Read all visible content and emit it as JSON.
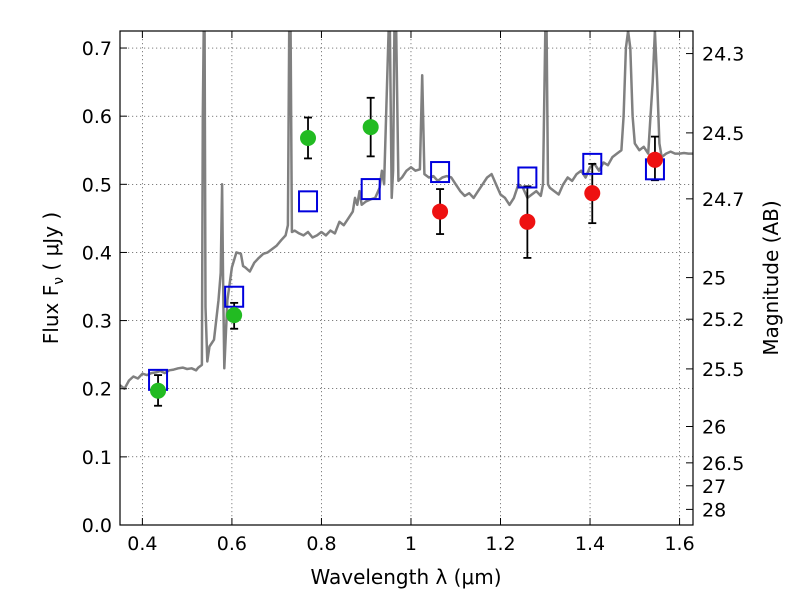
{
  "chart_data": {
    "type": "scatter",
    "xlabel": "Wavelength  λ (μm)",
    "ylabel": "Flux  F",
    "ylabel_sub": "ν",
    "ylabel_unit": " ( μJy )",
    "y2label": "Magnitude (AB)",
    "xlim": [
      0.35,
      1.63
    ],
    "ylim": [
      0.0,
      0.725
    ],
    "xticks": [
      {
        "value": 0.4,
        "label": "0.4"
      },
      {
        "value": 0.6,
        "label": "0.6"
      },
      {
        "value": 0.8,
        "label": "0.8"
      },
      {
        "value": 1.0,
        "label": "1"
      },
      {
        "value": 1.2,
        "label": "1.2"
      },
      {
        "value": 1.4,
        "label": "1.4"
      },
      {
        "value": 1.6,
        "label": "1.6"
      }
    ],
    "yticks": [
      {
        "value": 0.0,
        "label": "0.0"
      },
      {
        "value": 0.1,
        "label": "0.1"
      },
      {
        "value": 0.2,
        "label": "0.2"
      },
      {
        "value": 0.3,
        "label": "0.3"
      },
      {
        "value": 0.4,
        "label": "0.4"
      },
      {
        "value": 0.5,
        "label": "0.5"
      },
      {
        "value": 0.6,
        "label": "0.6"
      },
      {
        "value": 0.7,
        "label": "0.7"
      }
    ],
    "y2ticks": [
      {
        "value": 24.3,
        "label": "24.3"
      },
      {
        "value": 24.5,
        "label": "24.5"
      },
      {
        "value": 24.7,
        "label": "24.7"
      },
      {
        "value": 25.0,
        "label": "25"
      },
      {
        "value": 25.2,
        "label": "25.2"
      },
      {
        "value": 25.5,
        "label": "25.5"
      },
      {
        "value": 26.0,
        "label": "26"
      },
      {
        "value": 26.5,
        "label": "26.5"
      },
      {
        "value": 27.0,
        "label": "27"
      },
      {
        "value": 28.0,
        "label": "28"
      }
    ],
    "grid": true,
    "model_spectrum": {
      "color": "#808080",
      "points": [
        [
          0.35,
          0.205
        ],
        [
          0.36,
          0.2
        ],
        [
          0.37,
          0.212
        ],
        [
          0.38,
          0.218
        ],
        [
          0.39,
          0.215
        ],
        [
          0.4,
          0.222
        ],
        [
          0.41,
          0.22
        ],
        [
          0.42,
          0.223
        ],
        [
          0.43,
          0.224
        ],
        [
          0.44,
          0.226
        ],
        [
          0.45,
          0.223
        ],
        [
          0.46,
          0.227
        ],
        [
          0.47,
          0.228
        ],
        [
          0.48,
          0.23
        ],
        [
          0.49,
          0.231
        ],
        [
          0.5,
          0.229
        ],
        [
          0.51,
          0.23
        ],
        [
          0.52,
          0.227
        ],
        [
          0.525,
          0.231
        ],
        [
          0.533,
          0.235
        ],
        [
          0.535,
          0.6
        ],
        [
          0.537,
          0.725
        ],
        [
          0.539,
          0.725
        ],
        [
          0.541,
          0.32
        ],
        [
          0.545,
          0.24
        ],
        [
          0.55,
          0.262
        ],
        [
          0.56,
          0.272
        ],
        [
          0.57,
          0.33
        ],
        [
          0.575,
          0.37
        ],
        [
          0.578,
          0.5
        ],
        [
          0.58,
          0.37
        ],
        [
          0.583,
          0.23
        ],
        [
          0.59,
          0.33
        ],
        [
          0.6,
          0.378
        ],
        [
          0.61,
          0.4
        ],
        [
          0.62,
          0.398
        ],
        [
          0.625,
          0.38
        ],
        [
          0.63,
          0.378
        ],
        [
          0.64,
          0.372
        ],
        [
          0.65,
          0.385
        ],
        [
          0.66,
          0.392
        ],
        [
          0.67,
          0.398
        ],
        [
          0.68,
          0.4
        ],
        [
          0.69,
          0.405
        ],
        [
          0.7,
          0.41
        ],
        [
          0.71,
          0.418
        ],
        [
          0.72,
          0.425
        ],
        [
          0.725,
          0.44
        ],
        [
          0.728,
          0.725
        ],
        [
          0.731,
          0.725
        ],
        [
          0.734,
          0.43
        ],
        [
          0.74,
          0.432
        ],
        [
          0.75,
          0.428
        ],
        [
          0.76,
          0.425
        ],
        [
          0.77,
          0.43
        ],
        [
          0.78,
          0.422
        ],
        [
          0.79,
          0.425
        ],
        [
          0.8,
          0.43
        ],
        [
          0.81,
          0.425
        ],
        [
          0.82,
          0.432
        ],
        [
          0.83,
          0.428
        ],
        [
          0.84,
          0.445
        ],
        [
          0.85,
          0.44
        ],
        [
          0.86,
          0.45
        ],
        [
          0.87,
          0.46
        ],
        [
          0.875,
          0.48
        ],
        [
          0.88,
          0.47
        ],
        [
          0.885,
          0.49
        ],
        [
          0.89,
          0.47
        ],
        [
          0.9,
          0.475
        ],
        [
          0.91,
          0.478
        ],
        [
          0.92,
          0.48
        ],
        [
          0.93,
          0.495
        ],
        [
          0.935,
          0.52
        ],
        [
          0.94,
          0.5
        ],
        [
          0.95,
          0.725
        ],
        [
          0.953,
          0.725
        ],
        [
          0.957,
          0.48
        ],
        [
          0.96,
          0.52
        ],
        [
          0.963,
          0.725
        ],
        [
          0.967,
          0.725
        ],
        [
          0.972,
          0.505
        ],
        [
          0.98,
          0.51
        ],
        [
          0.99,
          0.52
        ],
        [
          1.0,
          0.525
        ],
        [
          1.01,
          0.52
        ],
        [
          1.02,
          0.522
        ],
        [
          1.025,
          0.66
        ],
        [
          1.03,
          0.515
        ],
        [
          1.04,
          0.51
        ],
        [
          1.05,
          0.512
        ],
        [
          1.06,
          0.505
        ],
        [
          1.07,
          0.51
        ],
        [
          1.08,
          0.512
        ],
        [
          1.09,
          0.51
        ],
        [
          1.1,
          0.5
        ],
        [
          1.11,
          0.49
        ],
        [
          1.12,
          0.483
        ],
        [
          1.13,
          0.487
        ],
        [
          1.14,
          0.48
        ],
        [
          1.15,
          0.49
        ],
        [
          1.16,
          0.5
        ],
        [
          1.17,
          0.51
        ],
        [
          1.18,
          0.515
        ],
        [
          1.19,
          0.5
        ],
        [
          1.2,
          0.485
        ],
        [
          1.21,
          0.48
        ],
        [
          1.22,
          0.47
        ],
        [
          1.23,
          0.48
        ],
        [
          1.24,
          0.5
        ],
        [
          1.25,
          0.495
        ],
        [
          1.26,
          0.48
        ],
        [
          1.27,
          0.485
        ],
        [
          1.28,
          0.49
        ],
        [
          1.29,
          0.483
        ],
        [
          1.295,
          0.5
        ],
        [
          1.3,
          0.725
        ],
        [
          1.303,
          0.725
        ],
        [
          1.306,
          0.5
        ],
        [
          1.31,
          0.495
        ],
        [
          1.32,
          0.49
        ],
        [
          1.33,
          0.485
        ],
        [
          1.34,
          0.5
        ],
        [
          1.35,
          0.51
        ],
        [
          1.36,
          0.505
        ],
        [
          1.37,
          0.515
        ],
        [
          1.38,
          0.52
        ],
        [
          1.39,
          0.51
        ],
        [
          1.4,
          0.525
        ],
        [
          1.41,
          0.53
        ],
        [
          1.42,
          0.52
        ],
        [
          1.43,
          0.532
        ],
        [
          1.44,
          0.528
        ],
        [
          1.45,
          0.54
        ],
        [
          1.46,
          0.545
        ],
        [
          1.47,
          0.55
        ],
        [
          1.475,
          0.6
        ],
        [
          1.48,
          0.7
        ],
        [
          1.485,
          0.725
        ],
        [
          1.49,
          0.7
        ],
        [
          1.495,
          0.6
        ],
        [
          1.5,
          0.56
        ],
        [
          1.51,
          0.55
        ],
        [
          1.52,
          0.555
        ],
        [
          1.53,
          0.545
        ],
        [
          1.535,
          0.6
        ],
        [
          1.54,
          0.65
        ],
        [
          1.545,
          0.725
        ],
        [
          1.55,
          0.65
        ],
        [
          1.555,
          0.56
        ],
        [
          1.56,
          0.54
        ],
        [
          1.57,
          0.545
        ],
        [
          1.58,
          0.548
        ],
        [
          1.59,
          0.545
        ],
        [
          1.6,
          0.545
        ],
        [
          1.61,
          0.546
        ],
        [
          1.62,
          0.545
        ],
        [
          1.63,
          0.545
        ]
      ]
    },
    "model_photometry": {
      "color": "#0000dd",
      "points": [
        [
          0.435,
          0.213
        ],
        [
          0.605,
          0.335
        ],
        [
          0.77,
          0.475
        ],
        [
          0.91,
          0.493
        ],
        [
          1.065,
          0.518
        ],
        [
          1.26,
          0.51
        ],
        [
          1.405,
          0.53
        ],
        [
          1.545,
          0.522
        ]
      ]
    },
    "observed_green": {
      "color": "#22bb22",
      "points": [
        {
          "x": 0.435,
          "y": 0.197,
          "ylo": 0.175,
          "yhi": 0.22
        },
        {
          "x": 0.605,
          "y": 0.308,
          "ylo": 0.288,
          "yhi": 0.326
        },
        {
          "x": 0.77,
          "y": 0.568,
          "ylo": 0.538,
          "yhi": 0.598
        },
        {
          "x": 0.91,
          "y": 0.584,
          "ylo": 0.541,
          "yhi": 0.627
        }
      ]
    },
    "observed_red": {
      "color": "#ee1111",
      "points": [
        {
          "x": 1.065,
          "y": 0.46,
          "ylo": 0.427,
          "yhi": 0.493
        },
        {
          "x": 1.26,
          "y": 0.445,
          "ylo": 0.392,
          "yhi": 0.497
        },
        {
          "x": 1.405,
          "y": 0.487,
          "ylo": 0.443,
          "yhi": 0.53
        },
        {
          "x": 1.545,
          "y": 0.536,
          "ylo": 0.506,
          "yhi": 0.57
        }
      ]
    }
  }
}
